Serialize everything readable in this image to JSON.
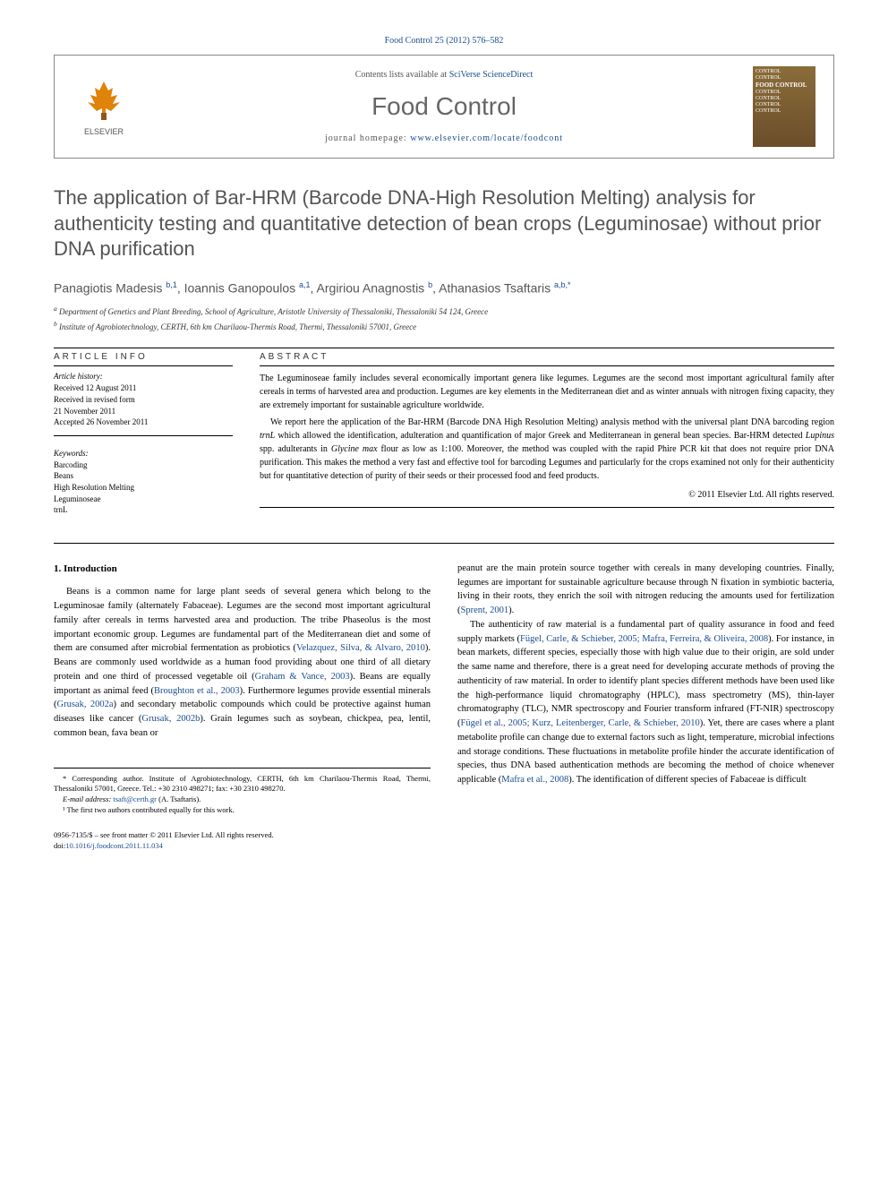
{
  "header": {
    "citation": "Food Control 25 (2012) 576–582",
    "contents_prefix": "Contents lists available at ",
    "contents_link": "SciVerse ScienceDirect",
    "journal": "Food Control",
    "homepage_prefix": "journal homepage: ",
    "homepage_url": "www.elsevier.com/locate/foodcont",
    "publisher": "ELSEVIER",
    "cover_lines": [
      "CONTROL",
      "CONTROL",
      "FOOD CONTROL",
      "CONTROL",
      "CONTROL",
      "CONTROL",
      "CONTROL"
    ]
  },
  "title": "The application of Bar-HRM (Barcode DNA-High Resolution Melting) analysis for authenticity testing and quantitative detection of bean crops (Leguminosae) without prior DNA purification",
  "authors_html": "Panagiotis Madesis <sup>b,1</sup>, Ioannis Ganopoulos <sup>a,1</sup>, Argiriou Anagnostis <sup>b</sup>, Athanasios Tsaftaris <sup>a,b,*</sup>",
  "affiliations": {
    "a": "Department of Genetics and Plant Breeding, School of Agriculture, Aristotle University of Thessaloniki, Thessaloniki 54 124, Greece",
    "b": "Institute of Agrobiotechnology, CERTH, 6th km Charilaou-Thermis Road, Thermi, Thessaloniki 57001, Greece"
  },
  "article_info": {
    "heading": "ARTICLE INFO",
    "history_label": "Article history:",
    "history": [
      "Received 12 August 2011",
      "Received in revised form",
      "21 November 2011",
      "Accepted 26 November 2011"
    ],
    "keywords_label": "Keywords:",
    "keywords": [
      "Barcoding",
      "Beans",
      "High Resolution Melting",
      "Leguminoseae",
      "trnL"
    ]
  },
  "abstract": {
    "heading": "ABSTRACT",
    "p1": "The Leguminoseae family includes several economically important genera like legumes. Legumes are the second most important agricultural family after cereals in terms of harvested area and production. Legumes are key elements in the Mediterranean diet and as winter annuals with nitrogen fixing capacity, they are extremely important for sustainable agriculture worldwide.",
    "p2_pre": "We report here the application of the Bar-HRM (Barcode DNA High Resolution Melting) analysis method with the universal plant DNA barcoding region ",
    "p2_em1": "trnL",
    "p2_mid1": " which allowed the identification, adulteration and quantification of major Greek and Mediterranean in general bean species. Bar-HRM detected ",
    "p2_em2": "Lupinus",
    "p2_mid2": " spp. adulterants in ",
    "p2_em3": "Glycine max",
    "p2_post": " flour as low as 1:100. Moreover, the method was coupled with the rapid Phire PCR kit that does not require prior DNA purification. This makes the method a very fast and effective tool for barcoding Legumes and particularly for the crops examined not only for their authenticity but for quantitative detection of purity of their seeds or their processed food and feed products.",
    "copyright": "© 2011 Elsevier Ltd. All rights reserved."
  },
  "body": {
    "section_heading": "1. Introduction",
    "col1_p1_a": "Beans is a common name for large plant seeds of several genera which belong to the Leguminosae family (alternately Fabaceae). Legumes are the second most important agricultural family after cereals in terms harvested area and production. The tribe Phaseolus is the most important economic group. Legumes are fundamental part of the Mediterranean diet and some of them are consumed after microbial fermentation as probiotics (",
    "ref1": "Velazquez, Silva, & Alvaro, 2010",
    "col1_p1_b": "). Beans are commonly used worldwide as a human food providing about one third of all dietary protein and one third of processed vegetable oil (",
    "ref2": "Graham & Vance, 2003",
    "col1_p1_c": "). Beans are equally important as animal feed (",
    "ref3": "Broughton et al., 2003",
    "col1_p1_d": "). Furthermore legumes provide essential minerals (",
    "ref4": "Grusak, 2002a",
    "col1_p1_e": ") and secondary metabolic compounds which could be protective against human diseases like cancer (",
    "ref5": "Grusak, 2002b",
    "col1_p1_f": "). Grain legumes such as soybean, chickpea, pea, lentil, common bean, fava bean or",
    "col2_p1_a": "peanut are the main protein source together with cereals in many developing countries. Finally, legumes are important for sustainable agriculture because through N fixation in symbiotic bacteria, living in their roots, they enrich the soil with nitrogen reducing the amounts used for fertilization (",
    "ref6": "Sprent, 2001",
    "col2_p1_b": ").",
    "col2_p2_a": "The authenticity of raw material is a fundamental part of quality assurance in food and feed supply markets (",
    "ref7": "Fügel, Carle, & Schieber, 2005; Mafra, Ferreira, & Oliveira, 2008",
    "col2_p2_b": "). For instance, in bean markets, different species, especially those with high value due to their origin, are sold under the same name and therefore, there is a great need for developing accurate methods of proving the authenticity of raw material. In order to identify plant species different methods have been used like the high-performance liquid chromatography (HPLC), mass spectrometry (MS), thin-layer chromatography (TLC), NMR spectroscopy and Fourier transform infrared (FT-NIR) spectroscopy (",
    "ref8": "Fügel et al., 2005; Kurz, Leitenberger, Carle, & Schieber, 2010",
    "col2_p2_c": "). Yet, there are cases where a plant metabolite profile can change due to external factors such as light, temperature, microbial infections and storage conditions. These fluctuations in metabolite profile hinder the accurate identification of species, thus DNA based authentication methods are becoming the method of choice whenever applicable (",
    "ref9": "Mafra et al., 2008",
    "col2_p2_d": "). The identification of different species of Fabaceae is difficult"
  },
  "footnotes": {
    "corr": "* Corresponding author. Institute of Agrobiotechnology, CERTH, 6th km Charilaou-Thermis Road, Thermi, Thessaloniki 57001, Greece. Tel.: +30 2310 498271; fax: +30 2310 498270.",
    "email_label": "E-mail address: ",
    "email": "tsaft@certh.gr",
    "email_suffix": " (A. Tsaftaris).",
    "note1": "¹ The first two authors contributed equally for this work."
  },
  "footer": {
    "front": "0956-7135/$ – see front matter © 2011 Elsevier Ltd. All rights reserved.",
    "doi_prefix": "doi:",
    "doi": "10.1016/j.foodcont.2011.11.034"
  }
}
